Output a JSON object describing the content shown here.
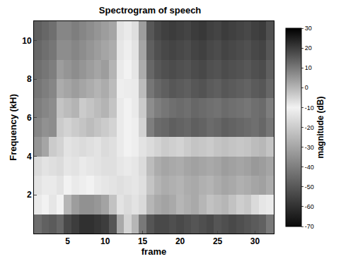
{
  "chart_data": {
    "type": "heatmap",
    "title": "Spectrogram of speech",
    "x_label": "frame",
    "y_label": "Frequency (kH)",
    "x": [
      1,
      2,
      3,
      4,
      5,
      6,
      7,
      8,
      9,
      10,
      11,
      12,
      13,
      14,
      15,
      16,
      17,
      18,
      19,
      20,
      21,
      22,
      23,
      24,
      25,
      26,
      27,
      28,
      29,
      30,
      31,
      32
    ],
    "y": [
      0.5,
      1.5,
      2.5,
      3.5,
      4.5,
      5.5,
      6.5,
      7.5,
      8.5,
      9.5,
      10.5
    ],
    "z": [
      [
        12,
        14,
        15,
        13,
        18,
        20,
        22,
        22,
        21,
        20,
        16,
        2,
        -5,
        0,
        10,
        16,
        18,
        18,
        17,
        18,
        17,
        16,
        17,
        18,
        16,
        17,
        18,
        17,
        16,
        15,
        14,
        10
      ],
      [
        -12,
        -10,
        -8,
        -10,
        0,
        4,
        6,
        6,
        5,
        3,
        -2,
        -14,
        -16,
        -14,
        -6,
        0,
        2,
        3,
        2,
        0,
        1,
        2,
        0,
        -2,
        -1,
        0,
        -2,
        -4,
        -3,
        -6,
        -8,
        -12
      ],
      [
        -14,
        -12,
        -12,
        -14,
        -10,
        -12,
        -11,
        -10,
        -12,
        -13,
        -14,
        -15,
        -14,
        -13,
        -15,
        -22,
        -26,
        -28,
        -27,
        -26,
        -28,
        -29,
        -27,
        -26,
        -28,
        -30,
        -29,
        -27,
        -28,
        -30,
        -31,
        -28
      ],
      [
        -16,
        -14,
        -15,
        -16,
        -13,
        -14,
        -12,
        -13,
        -14,
        -15,
        -15,
        -13,
        -12,
        -13,
        -16,
        -24,
        -28,
        -30,
        -29,
        -28,
        -30,
        -31,
        -30,
        -29,
        -30,
        -32,
        -31,
        -30,
        -31,
        -33,
        -32,
        -30
      ],
      [
        -34,
        -30,
        -20,
        -18,
        -14,
        -15,
        -16,
        -15,
        -14,
        -16,
        -15,
        -12,
        -10,
        -11,
        -14,
        -16,
        -18,
        -20,
        -19,
        -18,
        -20,
        -22,
        -21,
        -20,
        -22,
        -23,
        -22,
        -21,
        -22,
        -24,
        -25,
        -22
      ],
      [
        -38,
        -35,
        -36,
        -20,
        -18,
        -20,
        -22,
        -24,
        -22,
        -20,
        -18,
        -12,
        -10,
        -11,
        -18,
        -40,
        -45,
        -46,
        -48,
        -47,
        -46,
        -48,
        -47,
        -45,
        -46,
        -48,
        -47,
        -46,
        -45,
        -44,
        -46,
        -42
      ],
      [
        -40,
        -38,
        -36,
        -22,
        -24,
        -26,
        -20,
        -22,
        -24,
        -26,
        -22,
        -12,
        -10,
        -12,
        -20,
        -36,
        -40,
        -42,
        -44,
        -45,
        -44,
        -46,
        -45,
        -44,
        -43,
        -45,
        -44,
        -43,
        -42,
        -44,
        -45,
        -40
      ],
      [
        -42,
        -40,
        -38,
        -28,
        -30,
        -32,
        -30,
        -28,
        -26,
        -28,
        -24,
        -11,
        -9,
        -12,
        -24,
        -42,
        -46,
        -48,
        -50,
        -49,
        -48,
        -50,
        -51,
        -49,
        -48,
        -50,
        -49,
        -48,
        -47,
        -49,
        -50,
        -46
      ],
      [
        -44,
        -42,
        -40,
        -32,
        -34,
        -36,
        -34,
        -32,
        -30,
        -32,
        -26,
        -12,
        -10,
        -13,
        -28,
        -46,
        -50,
        -52,
        -53,
        -52,
        -51,
        -53,
        -54,
        -52,
        -51,
        -53,
        -52,
        -51,
        -50,
        -52,
        -53,
        -48
      ],
      [
        -46,
        -44,
        -42,
        -36,
        -36,
        -38,
        -36,
        -34,
        -32,
        -30,
        -28,
        -13,
        -11,
        -14,
        -30,
        -48,
        -52,
        -54,
        -55,
        -54,
        -53,
        -55,
        -56,
        -54,
        -53,
        -55,
        -54,
        -53,
        -52,
        -54,
        -55,
        -50
      ],
      [
        -48,
        -46,
        -44,
        -38,
        -38,
        -40,
        -38,
        -36,
        -34,
        -32,
        -30,
        -14,
        -12,
        -15,
        -32,
        -50,
        -54,
        -56,
        -57,
        -56,
        -55,
        -57,
        -58,
        -56,
        -55,
        -57,
        -56,
        -55,
        -54,
        -56,
        -57,
        -52
      ]
    ],
    "xlim": [
      0.5,
      32.5
    ],
    "xticks": [
      5,
      10,
      15,
      20,
      25,
      30
    ],
    "ylim": [
      0,
      11
    ],
    "yticks": [
      2,
      4,
      6,
      8,
      10
    ],
    "colorbar": {
      "title": "magnitude (dB)",
      "range": [
        -70,
        30
      ],
      "ticks": [
        30,
        20,
        10,
        0,
        -10,
        -20,
        -30,
        -40,
        -50,
        -60,
        -70
      ]
    }
  }
}
